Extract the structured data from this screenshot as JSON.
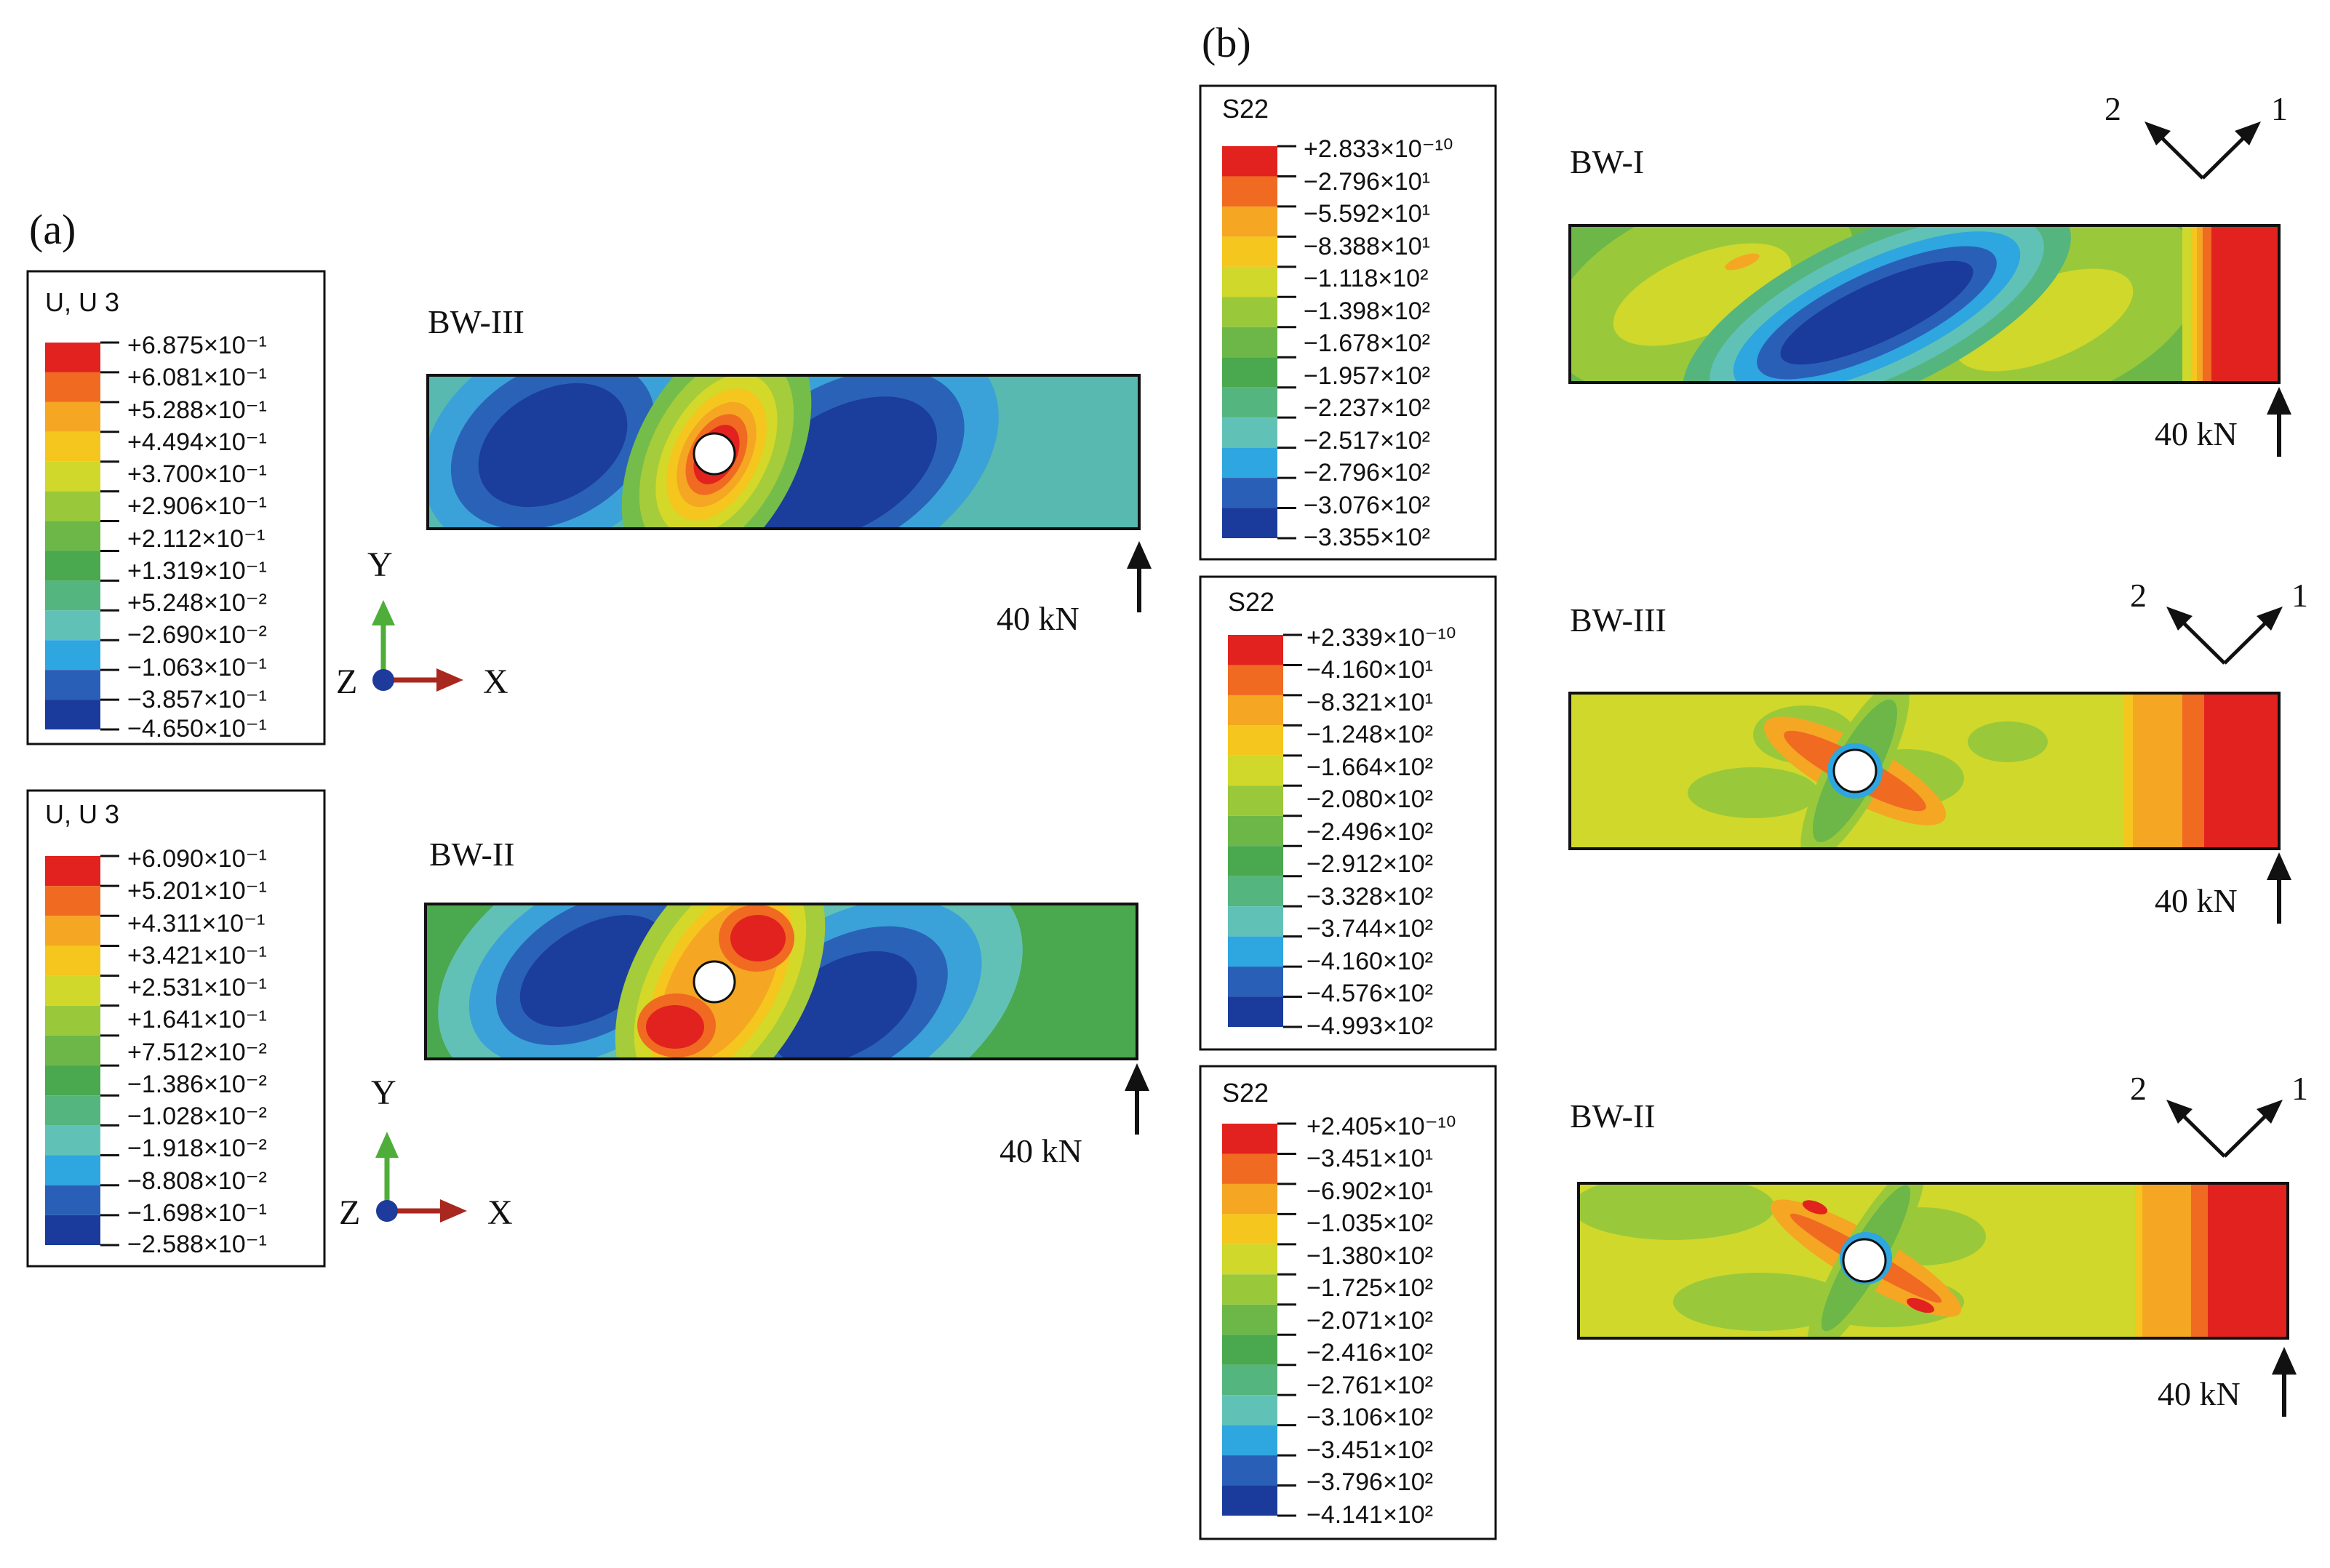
{
  "panel_a": {
    "label": "(a)",
    "plots": [
      {
        "legend_title": "U, U 3",
        "legend_values": [
          "+6.875×10⁻¹",
          "+6.081×10⁻¹",
          "+5.288×10⁻¹",
          "+4.494×10⁻¹",
          "+3.700×10⁻¹",
          "+2.906×10⁻¹",
          "+2.112×10⁻¹",
          "+1.319×10⁻¹",
          "+5.248×10⁻²",
          "−2.690×10⁻²",
          "−1.063×10⁻¹",
          "−3.857×10⁻¹",
          "−4.650×10⁻¹"
        ],
        "specimen_label": "BW-III",
        "load_label": "40 kN",
        "axis_labels": {
          "x": "X",
          "y": "Y",
          "z": "Z"
        }
      },
      {
        "legend_title": "U, U 3",
        "legend_values": [
          "+6.090×10⁻¹",
          "+5.201×10⁻¹",
          "+4.311×10⁻¹",
          "+3.421×10⁻¹",
          "+2.531×10⁻¹",
          "+1.641×10⁻¹",
          "+7.512×10⁻²",
          "−1.386×10⁻²",
          "−1.028×10⁻²",
          "−1.918×10⁻²",
          "−8.808×10⁻²",
          "−1.698×10⁻¹",
          "−2.588×10⁻¹"
        ],
        "specimen_label": "BW-II",
        "load_label": "40 kN",
        "axis_labels": {
          "x": "X",
          "y": "Y",
          "z": "Z"
        }
      }
    ]
  },
  "panel_b": {
    "label": "(b)",
    "plots": [
      {
        "legend_title": "S22",
        "legend_values": [
          "+2.833×10⁻¹⁰",
          "−2.796×10¹",
          "−5.592×10¹",
          "−8.388×10¹",
          "−1.118×10²",
          "−1.398×10²",
          "−1.678×10²",
          "−1.957×10²",
          "−2.237×10²",
          "−2.517×10²",
          "−2.796×10²",
          "−3.076×10²",
          "−3.355×10²"
        ],
        "specimen_label": "BW-I",
        "load_label": "40 kN",
        "direction_labels": [
          "2",
          "1"
        ]
      },
      {
        "legend_title": "S22",
        "legend_values": [
          "+2.339×10⁻¹⁰",
          "−4.160×10¹",
          "−8.321×10¹",
          "−1.248×10²",
          "−1.664×10²",
          "−2.080×10²",
          "−2.496×10²",
          "−2.912×10²",
          "−3.328×10²",
          "−3.744×10²",
          "−4.160×10²",
          "−4.576×10²",
          "−4.993×10²"
        ],
        "specimen_label": "BW-III",
        "load_label": "40 kN",
        "direction_labels": [
          "2",
          "1"
        ]
      },
      {
        "legend_title": "S22",
        "legend_values": [
          "+2.405×10⁻¹⁰",
          "−3.451×10¹",
          "−6.902×10¹",
          "−1.035×10²",
          "−1.380×10²",
          "−1.725×10²",
          "−2.071×10²",
          "−2.416×10²",
          "−2.761×10²",
          "−3.106×10²",
          "−3.451×10²",
          "−3.796×10²",
          "−4.141×10²"
        ],
        "specimen_label": "BW-II",
        "load_label": "40 kN",
        "direction_labels": [
          "2",
          "1"
        ]
      }
    ]
  },
  "colors": {
    "contour_scale": [
      "#e2221e",
      "#f06a22",
      "#f5a623",
      "#f5c61d",
      "#cfd82b",
      "#99c93b",
      "#6cb748",
      "#4aa84e",
      "#55b57e",
      "#60c2b7",
      "#2ea6e0",
      "#2a5fb8",
      "#1a3b9c"
    ],
    "background": "#ffffff",
    "outline": "#111111"
  }
}
